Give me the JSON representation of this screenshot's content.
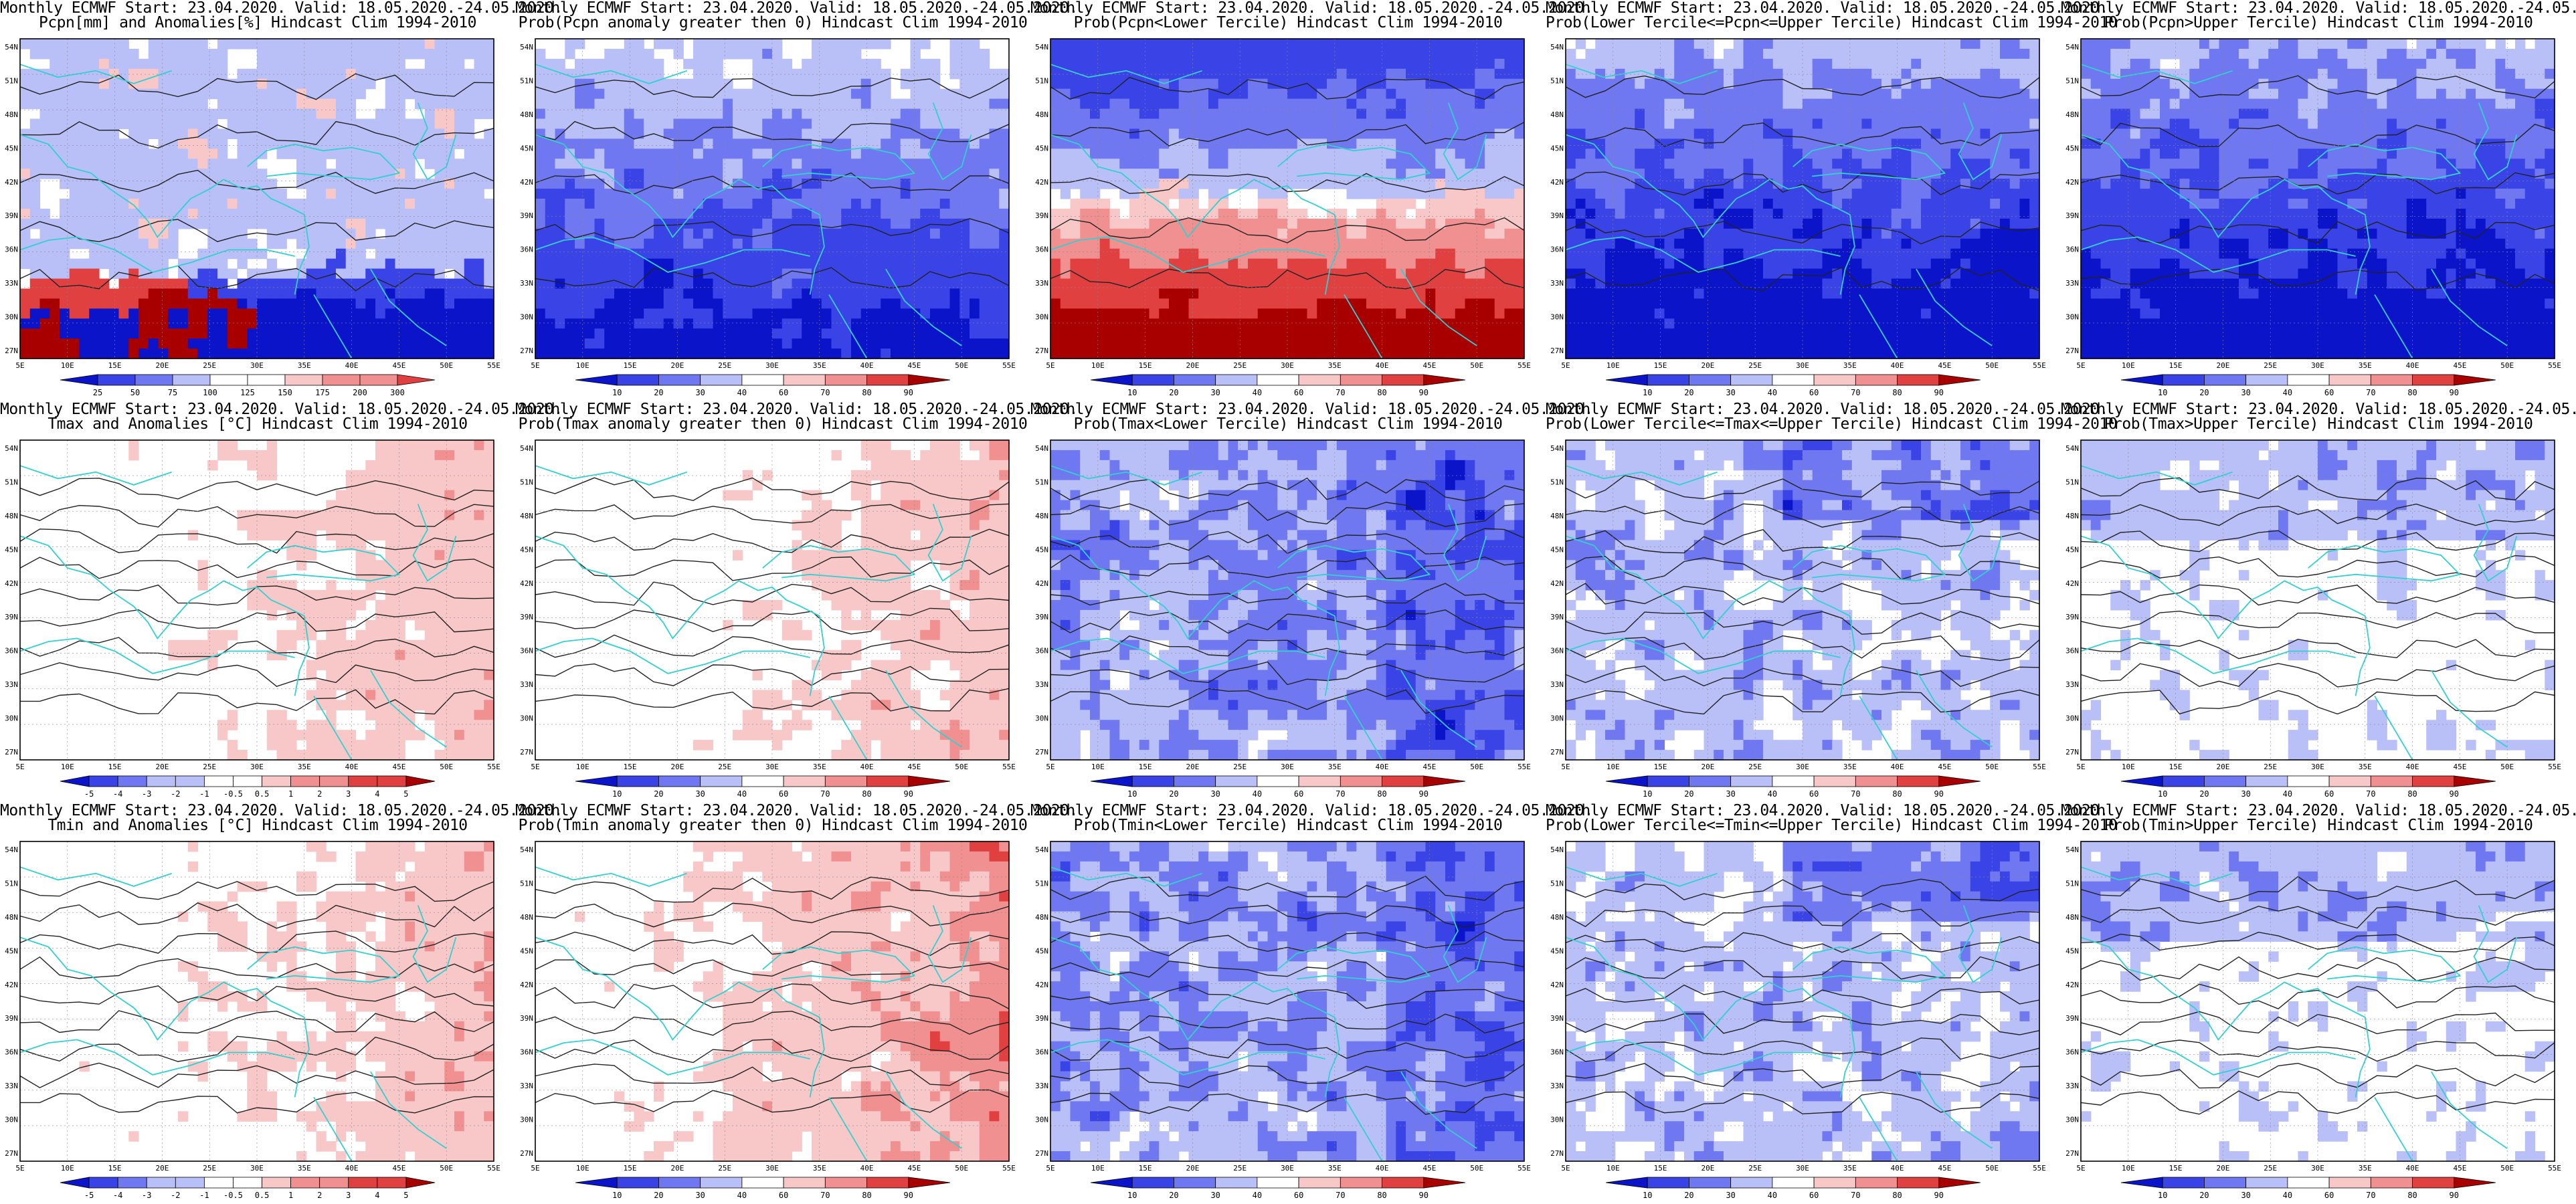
{
  "common": {
    "title_line1": "Monthly ECMWF Start: 23.04.2020. Valid: 18.05.2020.-24.05.2020.",
    "lat_labels": [
      "54N",
      "51N",
      "48N",
      "45N",
      "42N",
      "39N",
      "36N",
      "33N",
      "30N",
      "27N"
    ],
    "lon_labels": [
      "5E",
      "10E",
      "15E",
      "20E",
      "25E",
      "30E",
      "35E",
      "40E",
      "45E",
      "50E",
      "55E"
    ]
  },
  "colors": {
    "blue_dark": "#0b14c9",
    "blue": "#3a44e6",
    "blue_mid": "#6f78f0",
    "blue_light": "#b9bff7",
    "white": "#ffffff",
    "pink_light": "#f8c8c8",
    "pink": "#f19090",
    "red": "#e04040",
    "red_dark": "#a80000",
    "coast": "#32d0d0",
    "contour": "#222222"
  },
  "colorbars": {
    "anom_pcpn": [
      "25",
      "50",
      "75",
      "100",
      "125",
      "150",
      "175",
      "200",
      "300"
    ],
    "prob": [
      "10",
      "20",
      "30",
      "40",
      "60",
      "70",
      "80",
      "90"
    ],
    "anom_temp": [
      "-5",
      "-4",
      "-3",
      "-2",
      "-1",
      "-0.5",
      "0.5",
      "1",
      "2",
      "3",
      "4",
      "5"
    ]
  },
  "panels": [
    {
      "id": "pcpn-anom",
      "title2": "Pcpn[mm] and Anomalies[%] Hindcast Clim 1994-2010",
      "palette": "anom_pcpn",
      "scheme": "pcpn-anom"
    },
    {
      "id": "pcpn-prob-gt0",
      "title2": "Prob(Pcpn anomaly greater then 0) Hindcast Clim 1994-2010",
      "palette": "prob",
      "scheme": "mostly-blue"
    },
    {
      "id": "pcpn-lower",
      "title2": "Prob(Pcpn<Lower Tercile) Hindcast Clim 1994-2010",
      "palette": "prob",
      "scheme": "red-south"
    },
    {
      "id": "pcpn-middle",
      "title2": "Prob(Lower Tercile<=Pcpn<=Upper Tercile) Hindcast Clim 1994-2010",
      "palette": "prob",
      "scheme": "deep-blue"
    },
    {
      "id": "pcpn-upper",
      "title2": "Prob(Pcpn>Upper Tercile) Hindcast Clim 1994-2010",
      "palette": "prob",
      "scheme": "deep-blue"
    },
    {
      "id": "tmax-anom",
      "title2": "Tmax and Anomalies [°C] Hindcast Clim 1994-2010",
      "palette": "anom_temp",
      "scheme": "pinkish"
    },
    {
      "id": "tmax-prob-gt0",
      "title2": "Prob(Tmax anomaly greater then 0) Hindcast Clim 1994-2010",
      "palette": "prob",
      "scheme": "pinkish"
    },
    {
      "id": "tmax-lower",
      "title2": "Prob(Tmax<Lower Tercile) Hindcast Clim 1994-2010",
      "palette": "prob",
      "scheme": "blue-med"
    },
    {
      "id": "tmax-middle",
      "title2": "Prob(Lower Tercile<=Tmax<=Upper Tercile) Hindcast Clim 1994-2010",
      "palette": "prob",
      "scheme": "blue-light"
    },
    {
      "id": "tmax-upper",
      "title2": "Prob(Tmax>Upper Tercile) Hindcast Clim 1994-2010",
      "palette": "prob",
      "scheme": "pale"
    },
    {
      "id": "tmin-anom",
      "title2": "Tmin and Anomalies [°C] Hindcast Clim 1994-2010",
      "palette": "anom_temp",
      "scheme": "pinkish"
    },
    {
      "id": "tmin-prob-gt0",
      "title2": "Prob(Tmin anomaly greater then 0) Hindcast Clim 1994-2010",
      "palette": "prob",
      "scheme": "pinkish-strong"
    },
    {
      "id": "tmin-lower",
      "title2": "Prob(Tmin<Lower Tercile) Hindcast Clim 1994-2010",
      "palette": "prob",
      "scheme": "blue-med"
    },
    {
      "id": "tmin-middle",
      "title2": "Prob(Lower Tercile<=Tmin<=Upper Tercile) Hindcast Clim 1994-2010",
      "palette": "prob",
      "scheme": "blue-light"
    },
    {
      "id": "tmin-upper",
      "title2": "Prob(Tmin>Upper Tercile) Hindcast Clim 1994-2010",
      "palette": "prob",
      "scheme": "pale"
    }
  ]
}
